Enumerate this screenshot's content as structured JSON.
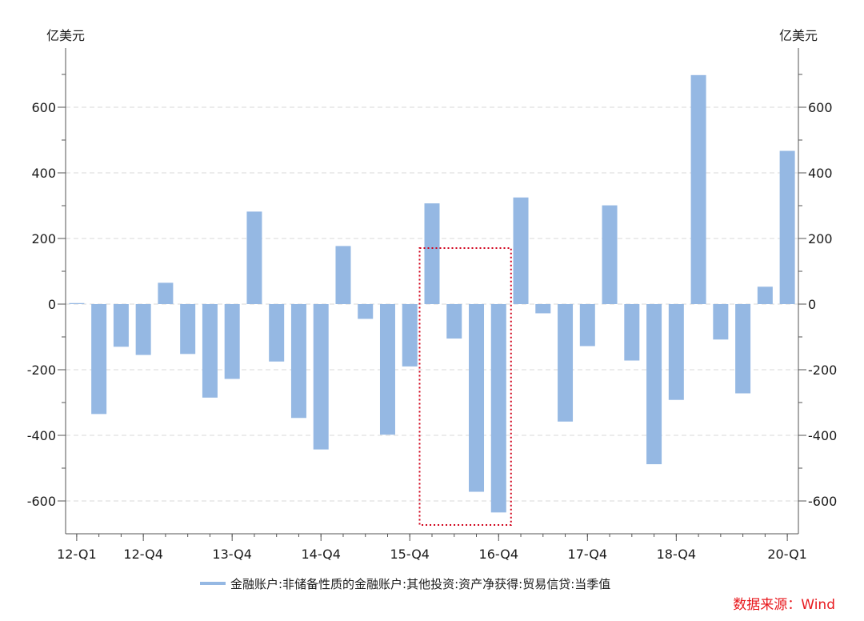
{
  "chart_data": {
    "type": "bar",
    "left_unit": "亿美元",
    "right_unit": "亿美元",
    "categories": [
      "12-Q1",
      "12-Q2",
      "12-Q3",
      "12-Q4",
      "13-Q1",
      "13-Q2",
      "13-Q3",
      "13-Q4",
      "14-Q1",
      "14-Q2",
      "14-Q3",
      "14-Q4",
      "15-Q1",
      "15-Q2",
      "15-Q3",
      "15-Q4",
      "16-Q1",
      "16-Q2",
      "16-Q3",
      "16-Q4",
      "17-Q1",
      "17-Q2",
      "17-Q3",
      "17-Q4",
      "18-Q1",
      "18-Q2",
      "18-Q3",
      "18-Q4",
      "19-Q1",
      "19-Q2",
      "19-Q3",
      "19-Q4",
      "20-Q1"
    ],
    "x_tick_labels": [
      "12-Q1",
      "12-Q4",
      "13-Q4",
      "14-Q4",
      "15-Q4",
      "16-Q4",
      "17-Q4",
      "18-Q4",
      "20-Q1"
    ],
    "series": [
      {
        "name": "金融账户:非储备性质的金融账户:其他投资:资产净获得:贸易信贷:当季值",
        "color": "#95b8e3",
        "values": [
          3,
          -335,
          -130,
          -155,
          65,
          -152,
          -285,
          -228,
          282,
          -175,
          -347,
          -443,
          177,
          -45,
          -398,
          -190,
          307,
          -105,
          -572,
          -635,
          325,
          -28,
          -358,
          -128,
          301,
          -172,
          -488,
          -292,
          698,
          -108,
          -272,
          53,
          467
        ]
      }
    ],
    "ylim": [
      -700,
      740
    ],
    "yticks": [
      -600,
      -400,
      -200,
      0,
      200,
      400,
      600
    ],
    "y_tick_labels": [
      "-600",
      "-400",
      "-200",
      "0",
      "200",
      "400",
      "600"
    ],
    "grid": "horizontal dashed",
    "highlight": {
      "from_category": "16-Q1",
      "to_category": "16-Q4",
      "color": "#d0021b",
      "style": "dotted"
    },
    "legend_position": "bottom-center",
    "source": "数据来源：Wind",
    "source_color": "#e8191e"
  }
}
